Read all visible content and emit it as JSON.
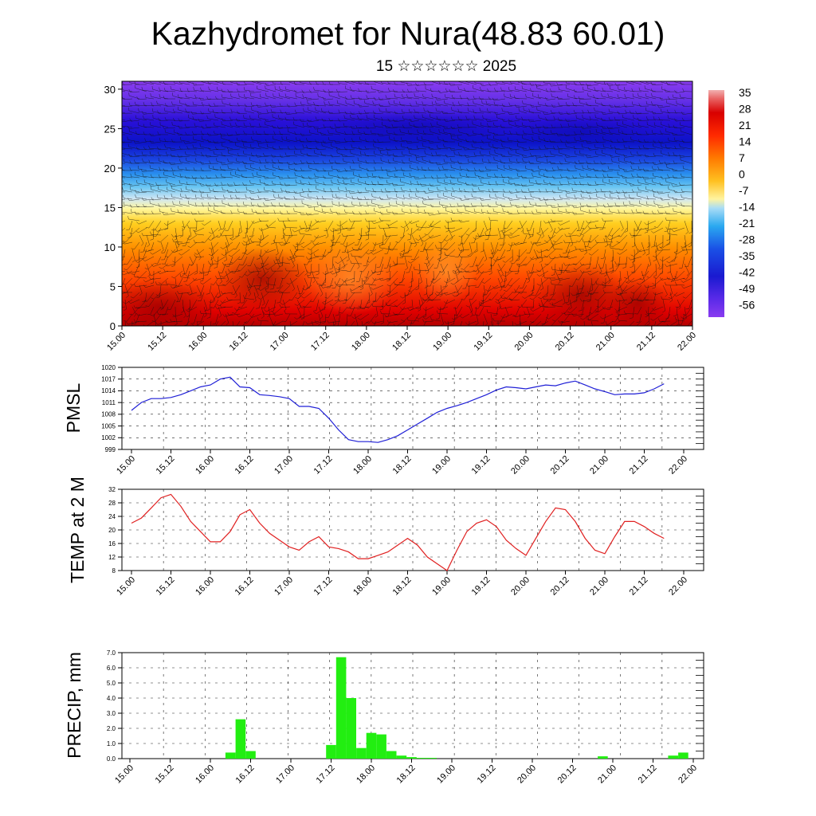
{
  "title": "Kazhydromet for Nura(48.83 60.01)",
  "subtitle": "15 ☆☆☆☆☆☆ 2025",
  "time_labels": [
    "15.00",
    "15.12",
    "16.00",
    "16.12",
    "17.00",
    "17.12",
    "18.00",
    "18.12",
    "19.00",
    "19.12",
    "20.00",
    "20.12",
    "21.00",
    "21.12",
    "22.00"
  ],
  "colors": {
    "pmsl_line": "#1f1fd6",
    "temp_line": "#e02020",
    "precip_bar": "#22ee11",
    "grid": "#222222"
  },
  "chart_data": [
    {
      "type": "heatmap",
      "title": "",
      "xlabel": "",
      "ylabel": "",
      "x_categories": [
        "15.00",
        "15.12",
        "16.00",
        "16.12",
        "17.00",
        "17.12",
        "18.00",
        "18.12",
        "19.00",
        "19.12",
        "20.00",
        "20.12",
        "21.00",
        "21.12",
        "22.00"
      ],
      "y_ticks": [
        0,
        5,
        10,
        15,
        20,
        25,
        30
      ],
      "ylim": [
        0,
        31
      ],
      "colorbar": {
        "labels": [
          "35",
          "28",
          "21",
          "14",
          "7",
          "0",
          "-7",
          "-14",
          "-21",
          "-28",
          "-35",
          "-42",
          "-49",
          "-56"
        ],
        "range": [
          -63,
          40
        ]
      },
      "overlay": "wind barbs"
    },
    {
      "type": "line",
      "title": "",
      "xlabel": "",
      "ylabel": "PMSL",
      "y_ticks": [
        "1020",
        "1017",
        "1014",
        "1011",
        "1008",
        "1005",
        "1002",
        "999"
      ],
      "ylim": [
        999,
        1020
      ],
      "x": [
        0,
        0.5,
        1,
        1.5,
        2,
        2.5,
        3,
        3.5,
        4,
        4.5,
        5,
        5.5,
        6,
        6.5,
        7,
        7.5,
        8,
        8.5,
        9,
        9.5,
        10,
        10.5,
        11,
        11.5,
        12,
        12.5,
        13,
        13.5,
        14,
        14.5,
        15,
        15.5,
        16,
        16.5,
        17,
        17.5,
        18,
        18.5,
        19,
        19.5,
        20,
        20.5,
        21,
        21.5,
        22,
        22.5,
        23,
        23.5,
        24,
        24.5,
        25,
        25.5,
        26,
        26.5,
        27
      ],
      "series": [
        {
          "values": [
            1009,
            1011,
            1012,
            1012,
            1012.3,
            1013,
            1014,
            1015,
            1015.5,
            1017,
            1017.5,
            1015,
            1014.8,
            1013,
            1012.8,
            1012.5,
            1012,
            1010,
            1010,
            1009.5,
            1007,
            1004,
            1001.5,
            1001,
            1001,
            1000.8,
            1001.5,
            1002.5,
            1004,
            1005.5,
            1007,
            1008.5,
            1009.5,
            1010.2,
            1011,
            1012,
            1013,
            1014.2,
            1015,
            1014.8,
            1014.5,
            1015,
            1015.5,
            1015.3,
            1016,
            1016.5,
            1015.5,
            1014.5,
            1013.8,
            1013,
            1013.2,
            1013.2,
            1013.5,
            1014.5,
            1015.8
          ]
        }
      ]
    },
    {
      "type": "line",
      "title": "",
      "xlabel": "",
      "ylabel": "TEMP at 2 M",
      "y_ticks": [
        "32",
        "28",
        "24",
        "20",
        "16",
        "12",
        "8"
      ],
      "ylim": [
        8,
        32
      ],
      "x": [
        0,
        0.5,
        1,
        1.5,
        2,
        2.5,
        3,
        3.5,
        4,
        4.5,
        5,
        5.5,
        6,
        6.5,
        7,
        7.5,
        8,
        8.5,
        9,
        9.5,
        10,
        10.5,
        11,
        11.5,
        12,
        12.5,
        13,
        13.5,
        14,
        14.5,
        15,
        15.5,
        16,
        16.5,
        17,
        17.5,
        18,
        18.5,
        19,
        19.5,
        20,
        20.5,
        21,
        21.5,
        22,
        22.5,
        23,
        23.5,
        24,
        24.5,
        25,
        25.5,
        26,
        26.5,
        27
      ],
      "series": [
        {
          "values": [
            22,
            23.5,
            26.5,
            29.5,
            30.5,
            27,
            22.5,
            19.5,
            16.5,
            16.5,
            19.5,
            24.5,
            26,
            22,
            19,
            17,
            15,
            14,
            16.5,
            18,
            15,
            14.5,
            13.5,
            11.5,
            11.5,
            12.5,
            13.5,
            15.5,
            17.5,
            15.5,
            12,
            10,
            8,
            14,
            19.5,
            22,
            23,
            21,
            17,
            14.5,
            12.5,
            17.5,
            22.5,
            26.5,
            26,
            22.5,
            17.5,
            14,
            13,
            18,
            22.5,
            22.5,
            21,
            19,
            17.5
          ]
        }
      ]
    },
    {
      "type": "bar",
      "title": "",
      "xlabel": "",
      "ylabel": "PRECIP, mm",
      "y_ticks": [
        "7.0",
        "6.0",
        "5.0",
        "4.0",
        "3.0",
        "2.0",
        "1.0",
        "0.0"
      ],
      "ylim": [
        0,
        7
      ],
      "x": [
        0,
        0.5,
        1,
        1.5,
        2,
        2.5,
        3,
        3.5,
        4,
        4.5,
        5,
        5.5,
        6,
        6.5,
        7,
        7.5,
        8,
        8.5,
        9,
        9.5,
        10,
        10.5,
        11,
        11.5,
        12,
        12.5,
        13,
        13.5,
        14,
        14.5,
        15,
        15.5,
        16,
        16.5,
        17,
        17.5,
        18,
        18.5,
        19,
        19.5,
        20,
        20.5,
        21,
        21.5,
        22,
        22.5,
        23,
        23.5,
        24,
        24.5,
        25,
        25.5,
        26,
        26.5,
        27,
        27.5,
        28
      ],
      "series": [
        {
          "values": [
            0,
            0,
            0,
            0,
            0,
            0,
            0,
            0,
            0,
            0,
            0.4,
            2.6,
            0.5,
            0,
            0,
            0,
            0,
            0,
            0,
            0,
            0.9,
            6.7,
            4,
            0.7,
            1.7,
            1.6,
            0.5,
            0.2,
            0.1,
            0.05,
            0.05,
            0,
            0,
            0,
            0,
            0,
            0,
            0,
            0,
            0,
            0,
            0,
            0,
            0,
            0,
            0,
            0,
            0.15,
            0,
            0,
            0,
            0,
            0,
            0,
            0.2,
            0.4,
            0
          ]
        }
      ]
    }
  ]
}
